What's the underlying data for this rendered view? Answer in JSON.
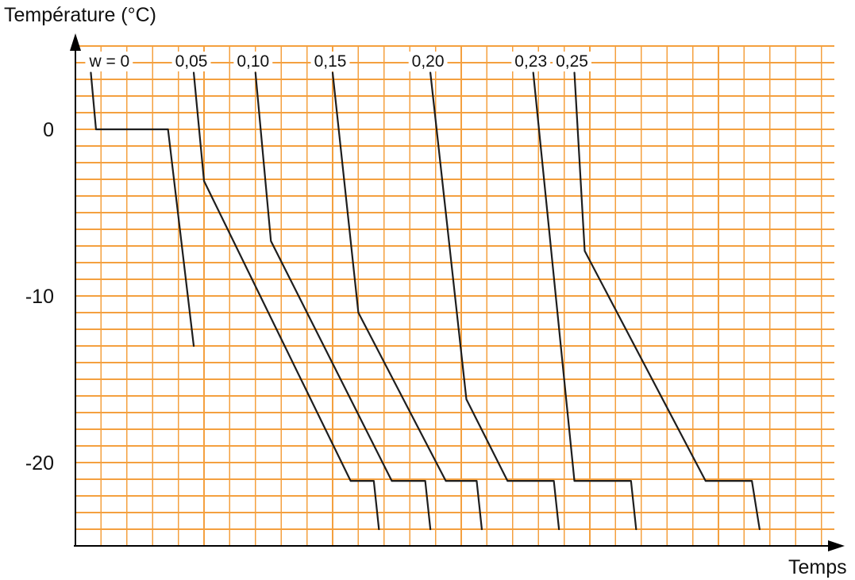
{
  "chart_data": {
    "type": "line",
    "ylabel": "Température (°C)",
    "xlabel": "Temps",
    "yticks": [
      0,
      -10,
      -20
    ],
    "ylim": [
      -25,
      5
    ],
    "xlim": [
      0,
      29.5
    ],
    "grid": true,
    "grid_color": "#F4A03F",
    "line_color": "#1E1E1E",
    "series": [
      {
        "name": "w = 0",
        "points": [
          [
            0.6,
            3.4
          ],
          [
            0.8,
            0
          ],
          [
            3.6,
            0
          ],
          [
            4.6,
            -13.0
          ]
        ]
      },
      {
        "name": "0,05",
        "points": [
          [
            4.6,
            3.4
          ],
          [
            5.0,
            -3.1
          ],
          [
            10.7,
            -21.1
          ],
          [
            11.6,
            -21.1
          ],
          [
            11.8,
            -24.0
          ]
        ]
      },
      {
        "name": "0,10",
        "points": [
          [
            7.0,
            3.4
          ],
          [
            7.6,
            -6.7
          ],
          [
            12.3,
            -21.1
          ],
          [
            13.6,
            -21.1
          ],
          [
            13.8,
            -24.0
          ]
        ]
      },
      {
        "name": "0,15",
        "points": [
          [
            10.0,
            3.4
          ],
          [
            11.0,
            -11.0
          ],
          [
            14.4,
            -21.1
          ],
          [
            15.6,
            -21.1
          ],
          [
            15.8,
            -24.0
          ]
        ]
      },
      {
        "name": "0,20",
        "points": [
          [
            13.8,
            3.4
          ],
          [
            15.2,
            -16.2
          ],
          [
            16.8,
            -21.1
          ],
          [
            18.6,
            -21.1
          ],
          [
            18.8,
            -24.0
          ]
        ]
      },
      {
        "name": "0,23",
        "points": [
          [
            17.8,
            3.4
          ],
          [
            19.4,
            -21.1
          ],
          [
            21.6,
            -21.1
          ],
          [
            21.8,
            -24.0
          ]
        ]
      },
      {
        "name": "0,25",
        "points": [
          [
            19.4,
            3.4
          ],
          [
            19.8,
            -7.3
          ],
          [
            24.5,
            -21.1
          ],
          [
            26.3,
            -21.1
          ],
          [
            26.6,
            -24.0
          ]
        ]
      }
    ]
  }
}
